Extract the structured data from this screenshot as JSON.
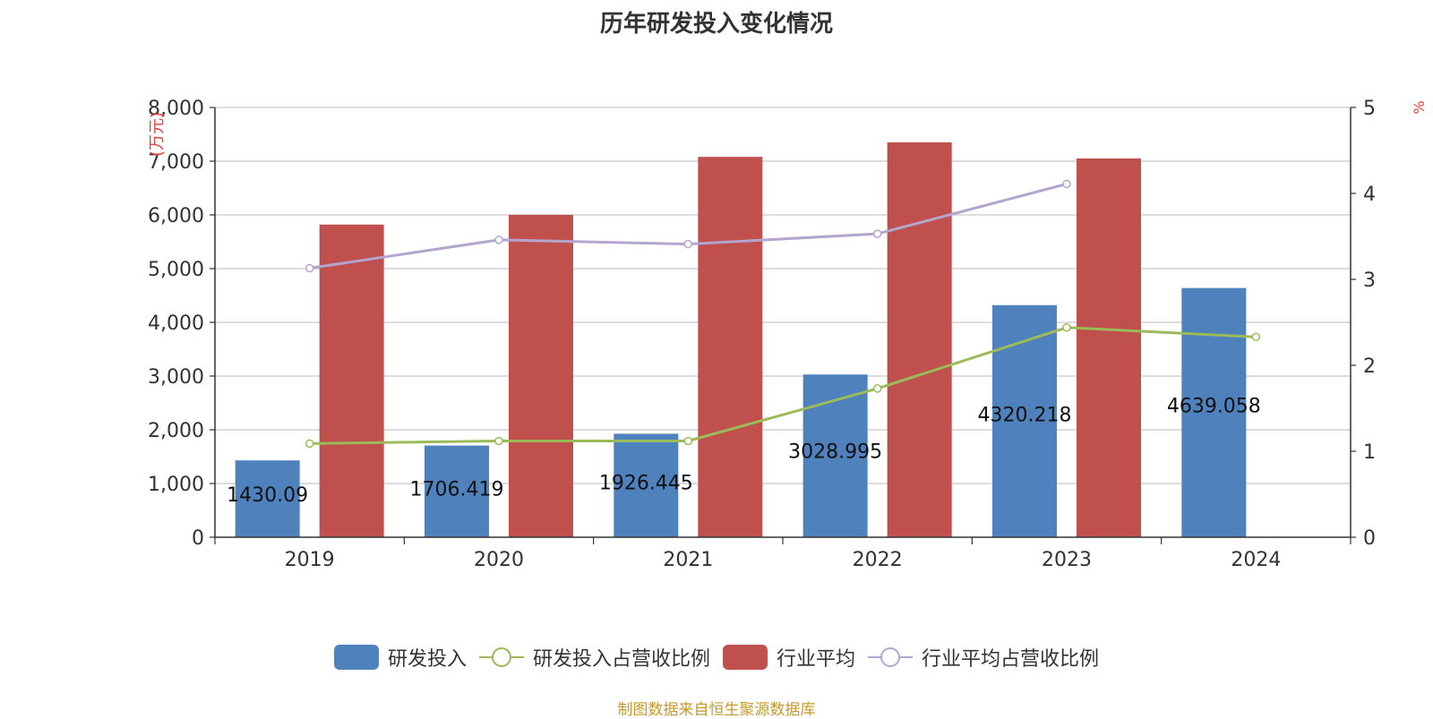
{
  "chart_data": {
    "type": "bar",
    "title": "历年研发投入变化情况",
    "categories": [
      "2019",
      "2020",
      "2021",
      "2022",
      "2023",
      "2024"
    ],
    "y_left": {
      "label": "(万元)",
      "ylim": [
        0,
        8000
      ],
      "ticks": [
        "0",
        "1,000",
        "2,000",
        "3,000",
        "4,000",
        "5,000",
        "6,000",
        "7,000",
        "8,000"
      ]
    },
    "y_right": {
      "label": "%",
      "ylim": [
        0,
        5
      ],
      "ticks": [
        "0",
        "1",
        "2",
        "3",
        "4",
        "5"
      ]
    },
    "series": [
      {
        "name": "研发投入",
        "type": "bar",
        "axis": "left",
        "color": "#4f81bd",
        "values": [
          1430.09,
          1706.419,
          1926.445,
          3028.995,
          4320.218,
          4639.058
        ],
        "labels": [
          "1430.09",
          "1706.419",
          "1926.445",
          "3028.995",
          "4320.218",
          "4639.058"
        ]
      },
      {
        "name": "研发投入占营收比例",
        "type": "line",
        "axis": "right",
        "color": "#9bbb59",
        "values": [
          1.09,
          1.12,
          1.12,
          1.73,
          2.44,
          2.33
        ]
      },
      {
        "name": "行业平均",
        "type": "bar",
        "axis": "left",
        "color": "#c0504d",
        "values": [
          5820,
          6000,
          7080,
          7350,
          7050,
          null
        ]
      },
      {
        "name": "行业平均占营收比例",
        "type": "line",
        "axis": "right",
        "color": "#b3a5cf",
        "values": [
          3.13,
          3.46,
          3.41,
          3.53,
          4.11,
          null
        ]
      }
    ],
    "grid": true,
    "legend_position": "bottom"
  },
  "source": "制图数据来自恒生聚源数据库"
}
